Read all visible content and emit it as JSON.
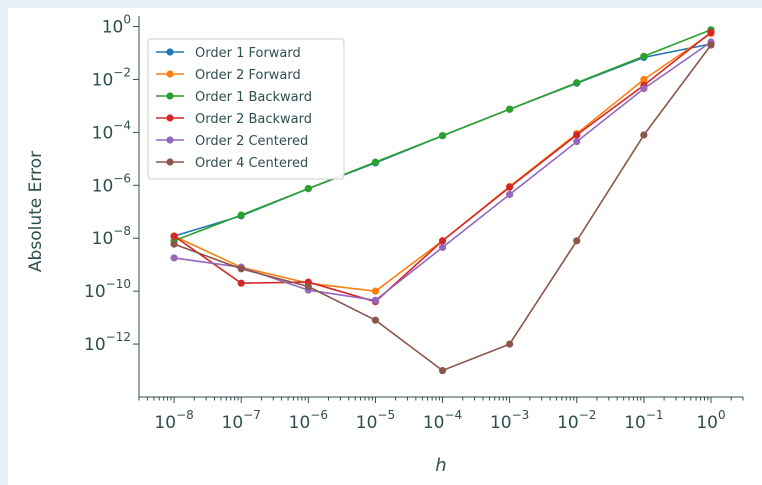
{
  "chart_data": {
    "type": "line",
    "title": "",
    "xlabel": "h",
    "ylabel": "Absolute Error",
    "x_scale": "log",
    "y_scale": "log",
    "xlim": [
      3e-09,
      3.0
    ],
    "ylim": [
      1e-14,
      2.5
    ],
    "grid": false,
    "legend_position": "top-left",
    "x": [
      1e-08,
      1e-07,
      1e-06,
      1e-05,
      0.0001,
      0.001,
      0.01,
      0.1,
      1
    ],
    "x_ticks": [
      {
        "base": "10",
        "exp": "−8"
      },
      {
        "base": "10",
        "exp": "−7"
      },
      {
        "base": "10",
        "exp": "−6"
      },
      {
        "base": "10",
        "exp": "−5"
      },
      {
        "base": "10",
        "exp": "−4"
      },
      {
        "base": "10",
        "exp": "−3"
      },
      {
        "base": "10",
        "exp": "−2"
      },
      {
        "base": "10",
        "exp": "−1"
      },
      {
        "base": "10",
        "exp": "0"
      }
    ],
    "y_ticks": [
      {
        "value": 1e-12,
        "base": "10",
        "exp": "−12"
      },
      {
        "value": 1e-10,
        "base": "10",
        "exp": "−10"
      },
      {
        "value": 1e-08,
        "base": "10",
        "exp": "−8"
      },
      {
        "value": 1e-06,
        "base": "10",
        "exp": "−6"
      },
      {
        "value": 0.0001,
        "base": "10",
        "exp": "−4"
      },
      {
        "value": 0.01,
        "base": "10",
        "exp": "−2"
      },
      {
        "value": 1,
        "base": "10",
        "exp": "0"
      }
    ],
    "series": [
      {
        "name": "Order 1 Forward",
        "color": "#1f77b4",
        "values": [
          1.2e-08,
          7e-08,
          7.5e-07,
          7e-06,
          7.5e-05,
          0.00075,
          0.0072,
          0.068,
          0.22
        ]
      },
      {
        "name": "Order 2 Forward",
        "color": "#ff7f0e",
        "values": [
          1.2e-08,
          8e-10,
          2e-10,
          1e-10,
          8e-09,
          9e-07,
          9e-05,
          0.01,
          0.55
        ]
      },
      {
        "name": "Order 1 Backward",
        "color": "#2ca02c",
        "values": [
          8e-09,
          7.5e-08,
          7.5e-07,
          7.5e-06,
          7.5e-05,
          0.00075,
          0.0075,
          0.075,
          0.75
        ]
      },
      {
        "name": "Order 2 Backward",
        "color": "#d62728",
        "values": [
          1.2e-08,
          2e-10,
          2.2e-10,
          4e-11,
          8e-09,
          8.5e-07,
          8e-05,
          0.006,
          0.6
        ]
      },
      {
        "name": "Order 2 Centered",
        "color": "#9467bd",
        "values": [
          1.8e-09,
          8e-10,
          1.1e-10,
          4.5e-11,
          4.5e-09,
          4.5e-07,
          4.5e-05,
          0.0045,
          0.26
        ]
      },
      {
        "name": "Order 4 Centered",
        "color": "#8c564b",
        "values": [
          6e-09,
          7e-10,
          1.5e-10,
          8e-12,
          1e-13,
          1e-12,
          8e-09,
          8e-05,
          0.2
        ]
      }
    ]
  }
}
